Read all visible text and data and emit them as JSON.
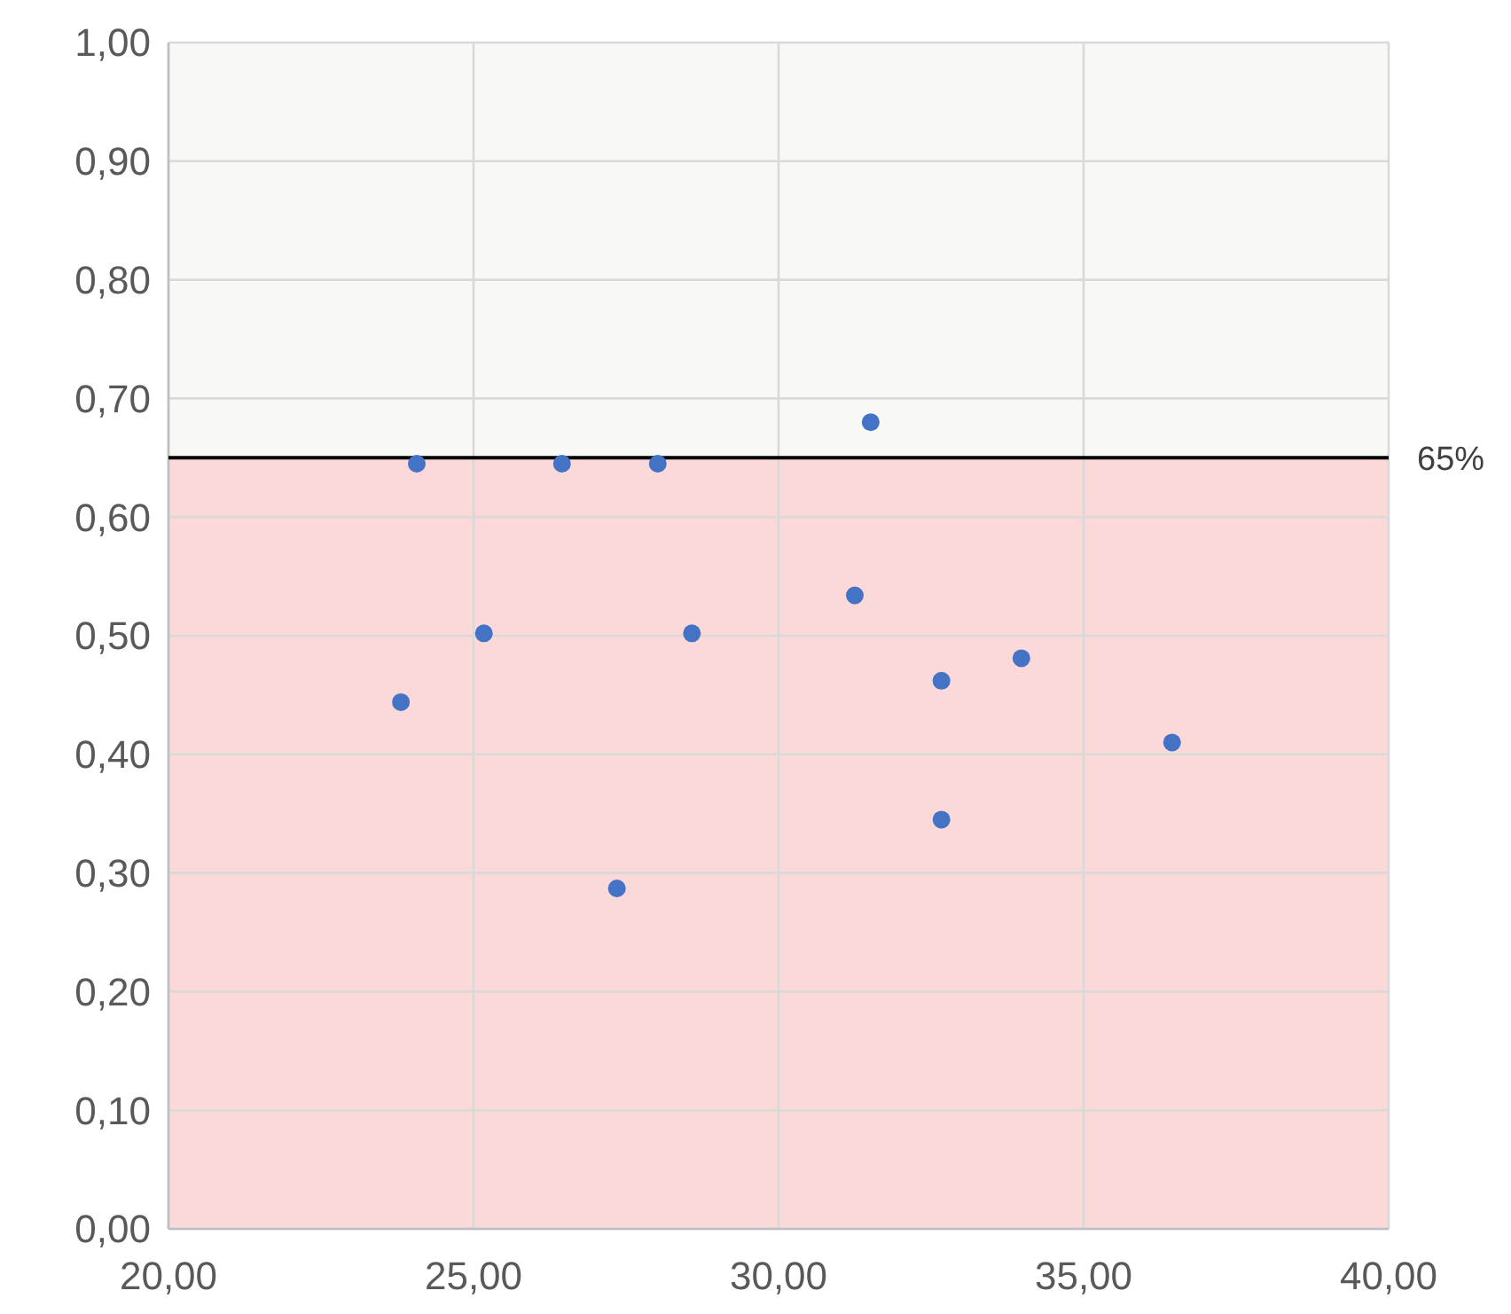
{
  "chart_data": {
    "type": "scatter",
    "x": [
      24.07,
      26.45,
      28.02,
      31.51,
      31.25,
      25.17,
      28.58,
      23.81,
      32.67,
      33.98,
      36.45,
      32.67,
      27.35
    ],
    "series": [
      {
        "color": "#4472c4",
        "values": [
          0.645,
          0.645,
          0.645,
          0.68,
          0.534,
          0.502,
          0.502,
          0.444,
          0.462,
          0.481,
          0.41,
          0.345,
          0.287
        ]
      }
    ],
    "xlim": [
      20,
      40
    ],
    "xticks": [
      {
        "value": 20,
        "label": "20,00"
      },
      {
        "value": 25,
        "label": "25,00"
      },
      {
        "value": 30,
        "label": "30,00"
      },
      {
        "value": 35,
        "label": "35,00"
      },
      {
        "value": 40,
        "label": "40,00"
      }
    ],
    "ylim": [
      0,
      1
    ],
    "yticks": [
      {
        "value": 0,
        "label": "0,00"
      },
      {
        "value": 0.1,
        "label": "0,10"
      },
      {
        "value": 0.2,
        "label": "0,20"
      },
      {
        "value": 0.3,
        "label": "0,30"
      },
      {
        "value": 0.4,
        "label": "0,40"
      },
      {
        "value": 0.5,
        "label": "0,50"
      },
      {
        "value": 0.6,
        "label": "0,60"
      },
      {
        "value": 0.7,
        "label": "0,70"
      },
      {
        "value": 0.8,
        "label": "0,80"
      },
      {
        "value": 0.9,
        "label": "0,90"
      },
      {
        "value": 1,
        "label": "1,00"
      }
    ],
    "bands": [
      {
        "axis": "y",
        "from": 0,
        "to": 0.65,
        "color": "#fbd9d9"
      },
      {
        "axis": "y",
        "from": 0.65,
        "to": 1,
        "color": "#f8f9f7"
      }
    ],
    "ref_lines": [
      {
        "axis": "y",
        "value": 0.65,
        "label": "65%",
        "color": "#000000"
      }
    ],
    "grid": true,
    "marker": "circle"
  }
}
